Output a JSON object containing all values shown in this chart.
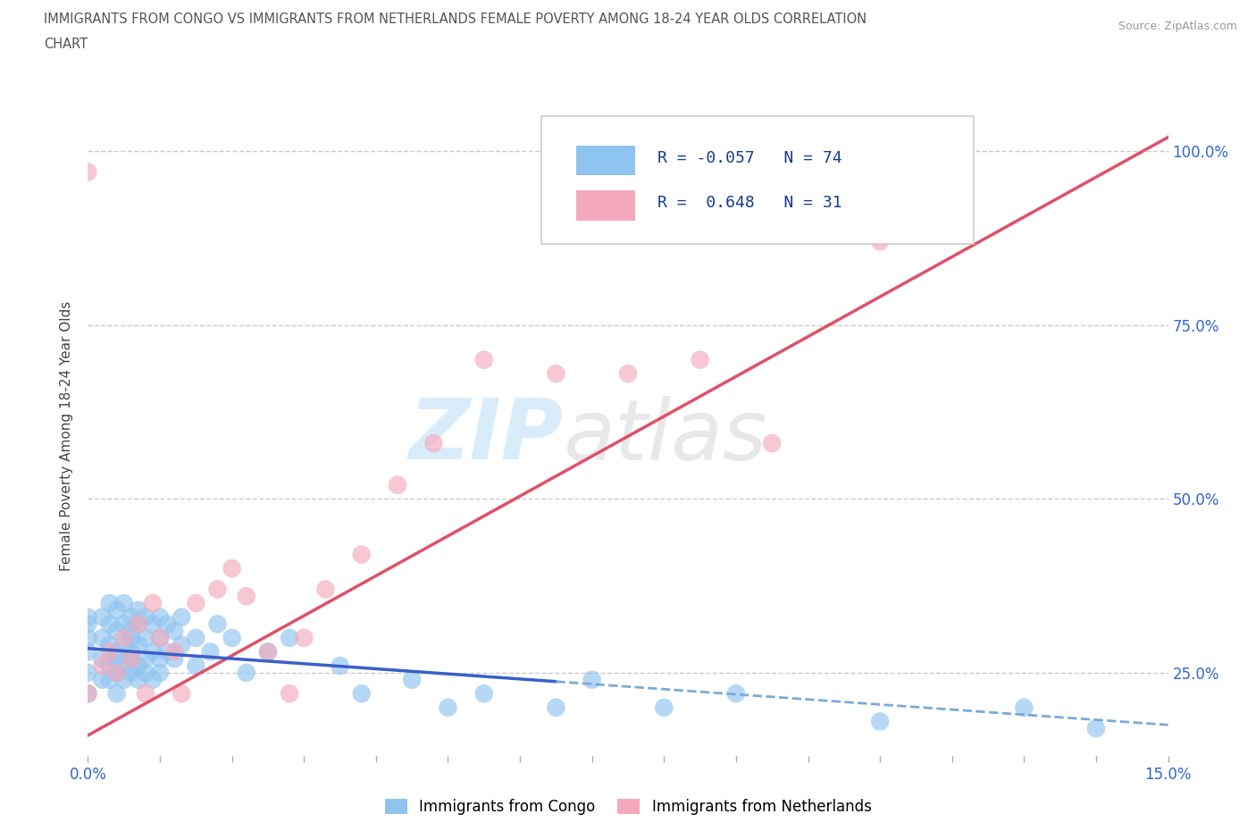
{
  "title_line1": "IMMIGRANTS FROM CONGO VS IMMIGRANTS FROM NETHERLANDS FEMALE POVERTY AMONG 18-24 YEAR OLDS CORRELATION",
  "title_line2": "CHART",
  "source": "Source: ZipAtlas.com",
  "ylabel": "Female Poverty Among 18-24 Year Olds",
  "xlim": [
    0.0,
    0.15
  ],
  "ylim": [
    0.13,
    1.05
  ],
  "ytick_positions": [
    0.25,
    0.5,
    0.75,
    1.0
  ],
  "right_ytick_labels": [
    "25.0%",
    "50.0%",
    "75.0%",
    "100.0%"
  ],
  "color_congo": "#90C4F0",
  "color_netherlands": "#F4AABC",
  "color_trend_congo_solid": "#3A5FC8",
  "color_trend_congo_dashed": "#7BAAD8",
  "color_trend_netherlands": "#E0506A",
  "label_congo": "Immigrants from Congo",
  "label_netherlands": "Immigrants from Netherlands",
  "congo_x": [
    0.0,
    0.0,
    0.0,
    0.0,
    0.0,
    0.0,
    0.002,
    0.002,
    0.002,
    0.002,
    0.003,
    0.003,
    0.003,
    0.003,
    0.003,
    0.004,
    0.004,
    0.004,
    0.004,
    0.004,
    0.004,
    0.005,
    0.005,
    0.005,
    0.005,
    0.005,
    0.006,
    0.006,
    0.006,
    0.006,
    0.006,
    0.006,
    0.007,
    0.007,
    0.007,
    0.007,
    0.007,
    0.008,
    0.008,
    0.008,
    0.008,
    0.009,
    0.009,
    0.009,
    0.01,
    0.01,
    0.01,
    0.01,
    0.011,
    0.011,
    0.012,
    0.012,
    0.013,
    0.013,
    0.015,
    0.015,
    0.017,
    0.018,
    0.02,
    0.022,
    0.025,
    0.028,
    0.035,
    0.038,
    0.045,
    0.05,
    0.055,
    0.065,
    0.07,
    0.08,
    0.09,
    0.11,
    0.13,
    0.14
  ],
  "congo_y": [
    0.28,
    0.3,
    0.32,
    0.25,
    0.33,
    0.22,
    0.27,
    0.3,
    0.33,
    0.24,
    0.26,
    0.29,
    0.32,
    0.24,
    0.35,
    0.25,
    0.28,
    0.31,
    0.34,
    0.22,
    0.27,
    0.26,
    0.29,
    0.32,
    0.24,
    0.35,
    0.27,
    0.3,
    0.33,
    0.25,
    0.28,
    0.31,
    0.26,
    0.29,
    0.32,
    0.24,
    0.34,
    0.27,
    0.3,
    0.33,
    0.25,
    0.28,
    0.32,
    0.24,
    0.27,
    0.3,
    0.33,
    0.25,
    0.28,
    0.32,
    0.27,
    0.31,
    0.29,
    0.33,
    0.26,
    0.3,
    0.28,
    0.32,
    0.3,
    0.25,
    0.28,
    0.3,
    0.26,
    0.22,
    0.24,
    0.2,
    0.22,
    0.2,
    0.24,
    0.2,
    0.22,
    0.18,
    0.2,
    0.17
  ],
  "netherlands_x": [
    0.0,
    0.0,
    0.002,
    0.003,
    0.004,
    0.005,
    0.006,
    0.007,
    0.008,
    0.009,
    0.01,
    0.012,
    0.013,
    0.015,
    0.018,
    0.02,
    0.022,
    0.025,
    0.028,
    0.03,
    0.033,
    0.038,
    0.043,
    0.048,
    0.055,
    0.065,
    0.075,
    0.085,
    0.095,
    0.11
  ],
  "netherlands_y": [
    0.97,
    0.22,
    0.26,
    0.28,
    0.25,
    0.3,
    0.27,
    0.32,
    0.22,
    0.35,
    0.3,
    0.28,
    0.22,
    0.35,
    0.37,
    0.4,
    0.36,
    0.28,
    0.22,
    0.3,
    0.37,
    0.42,
    0.52,
    0.58,
    0.7,
    0.68,
    0.68,
    0.7,
    0.58,
    0.87
  ],
  "trend_neth_x0": 0.0,
  "trend_neth_y0": 0.16,
  "trend_neth_x1": 0.15,
  "trend_neth_y1": 1.02,
  "trend_congo_x0": 0.0,
  "trend_congo_y0": 0.285,
  "trend_congo_x1": 0.15,
  "trend_congo_y1": 0.175
}
